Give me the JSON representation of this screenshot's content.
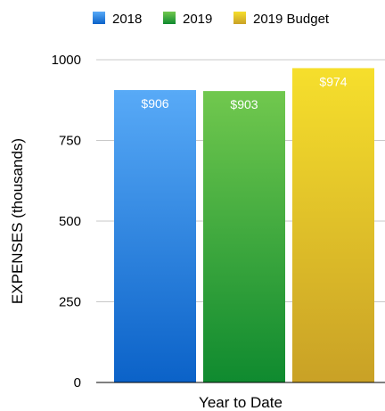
{
  "chart_data": {
    "type": "bar",
    "categories": [
      "Year to Date"
    ],
    "series": [
      {
        "name": "2018",
        "values": [
          906
        ],
        "label": "$906",
        "color": "#2f87e6",
        "color_top": "#58aaf7",
        "color_bottom": "#0b62c8"
      },
      {
        "name": "2019",
        "values": [
          903
        ],
        "label": "$903",
        "color": "#35a83a",
        "color_top": "#71c84e",
        "color_bottom": "#0f8a2f"
      },
      {
        "name": "2019 Budget",
        "values": [
          974
        ],
        "label": "$974",
        "color": "#e6c21c",
        "color_top": "#f6df2c",
        "color_bottom": "#c9a126"
      }
    ],
    "title": "",
    "xlabel": "Year to Date",
    "ylabel": "EXPENSES (thousands)",
    "ylim": [
      0,
      1000
    ],
    "yticks": [
      0,
      250,
      500,
      750,
      1000
    ],
    "ytick_labels": [
      "0",
      "250",
      "500",
      "750",
      "1000"
    ],
    "grid": true,
    "legend_position": "top"
  }
}
